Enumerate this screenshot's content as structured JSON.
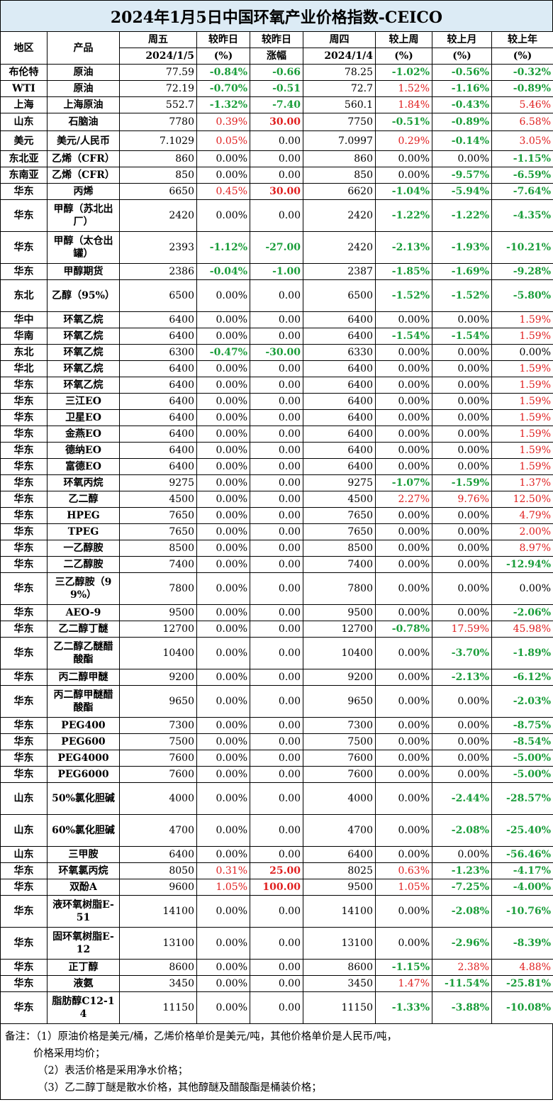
{
  "title": "2024年1月5日中国环氧产业价格指数-CEICO",
  "header": {
    "region": "地区",
    "product": "产品",
    "fri_label": "周五",
    "fri_date": "2024/1/5",
    "vs_prev_day_pct": "较昨日",
    "pct_unit": "(%)",
    "vs_prev_day_chg": "较昨日",
    "chg_unit": "涨幅",
    "thu_label": "周四",
    "thu_date": "2024/1/4",
    "vs_last_week": "较上周",
    "vs_last_month": "较上月",
    "vs_last_year": "较上年"
  },
  "rows": [
    {
      "region": "布伦特",
      "product": "原油",
      "fri": "77.59",
      "dpct": "-0.84%",
      "dchg": "-0.66",
      "thu": "78.25",
      "w": "-1.02%",
      "m": "-0.56%",
      "y": "-0.32%",
      "h": 23
    },
    {
      "region": "WTI",
      "product": "原油",
      "fri": "72.19",
      "dpct": "-0.70%",
      "dchg": "-0.51",
      "thu": "72.7",
      "w": "1.52%",
      "m": "-1.16%",
      "y": "-0.89%",
      "h": 23
    },
    {
      "region": "上海",
      "product": "上海原油",
      "fri": "552.7",
      "dpct": "-1.32%",
      "dchg": "-7.40",
      "thu": "560.1",
      "w": "1.84%",
      "m": "-0.43%",
      "y": "5.46%",
      "h": 23
    },
    {
      "region": "山东",
      "product": "石脑油",
      "fri": "7780",
      "dpct": "0.39%",
      "dchg": "30.00",
      "thu": "7750",
      "w": "-0.51%",
      "m": "-0.89%",
      "y": "6.58%",
      "h": 25
    },
    {
      "region": "美元",
      "product": "美元/人民币",
      "fri": "7.1029",
      "dpct": "0.05%",
      "dchg": "0.00",
      "thu": "7.0997",
      "w": "0.29%",
      "m": "-0.14%",
      "y": "3.05%",
      "h": 28
    },
    {
      "region": "东北亚",
      "product": "乙烯（CFR）",
      "fri": "860",
      "dpct": "0.00%",
      "dchg": "0.00",
      "thu": "860",
      "w": "0.00%",
      "m": "0.00%",
      "y": "-1.15%",
      "h": 23
    },
    {
      "region": "东南亚",
      "product": "乙烯（CFR）",
      "fri": "850",
      "dpct": "0.00%",
      "dchg": "0.00",
      "thu": "850",
      "w": "0.00%",
      "m": "-9.57%",
      "y": "-6.59%",
      "h": 23
    },
    {
      "region": "华东",
      "product": "丙烯",
      "fri": "6650",
      "dpct": "0.45%",
      "dchg": "30.00",
      "thu": "6620",
      "w": "-1.04%",
      "m": "-5.94%",
      "y": "-7.64%",
      "h": 23
    },
    {
      "region": "华东",
      "product": "甲醇（苏北出厂）",
      "fri": "2420",
      "dpct": "0.00%",
      "dchg": "0.00",
      "thu": "2420",
      "w": "-1.22%",
      "m": "-1.22%",
      "y": "-4.35%",
      "h": 45
    },
    {
      "region": "华东",
      "product": "甲醇（太仓出罐）",
      "fri": "2393",
      "dpct": "-1.12%",
      "dchg": "-27.00",
      "thu": "2420",
      "w": "-2.13%",
      "m": "-1.93%",
      "y": "-10.21%",
      "h": 45
    },
    {
      "region": "华东",
      "product": "甲醇期货",
      "fri": "2386",
      "dpct": "-0.04%",
      "dchg": "-1.00",
      "thu": "2387",
      "w": "-1.85%",
      "m": "-1.69%",
      "y": "-9.28%",
      "h": 23
    },
    {
      "region": "东北",
      "product": "乙醇（95%）",
      "fri": "6500",
      "dpct": "0.00%",
      "dchg": "0.00",
      "thu": "6500",
      "w": "-1.52%",
      "m": "-1.52%",
      "y": "-5.80%",
      "h": 45
    },
    {
      "region": "华中",
      "product": "环氧乙烷",
      "fri": "6400",
      "dpct": "0.00%",
      "dchg": "0.00",
      "thu": "6400",
      "w": "0.00%",
      "m": "0.00%",
      "y": "1.59%",
      "h": 23
    },
    {
      "region": "华南",
      "product": "环氧乙烷",
      "fri": "6400",
      "dpct": "0.00%",
      "dchg": "0.00",
      "thu": "6400",
      "w": "-1.54%",
      "m": "-1.54%",
      "y": "1.59%",
      "h": 23
    },
    {
      "region": "东北",
      "product": "环氧乙烷",
      "fri": "6300",
      "dpct": "-0.47%",
      "dchg": "-30.00",
      "thu": "6330",
      "w": "0.00%",
      "m": "0.00%",
      "y": "0.00%",
      "h": 23
    },
    {
      "region": "华北",
      "product": "环氧乙烷",
      "fri": "6400",
      "dpct": "0.00%",
      "dchg": "0.00",
      "thu": "6400",
      "w": "0.00%",
      "m": "0.00%",
      "y": "1.59%",
      "h": 23
    },
    {
      "region": "华东",
      "product": "环氧乙烷",
      "fri": "6400",
      "dpct": "0.00%",
      "dchg": "0.00",
      "thu": "6400",
      "w": "0.00%",
      "m": "0.00%",
      "y": "1.59%",
      "h": 23
    },
    {
      "region": "华东",
      "product": "三江EO",
      "fri": "6400",
      "dpct": "0.00%",
      "dchg": "0.00",
      "thu": "6400",
      "w": "0.00%",
      "m": "0.00%",
      "y": "1.59%",
      "h": 23
    },
    {
      "region": "华东",
      "product": "卫星EO",
      "fri": "6400",
      "dpct": "0.00%",
      "dchg": "0.00",
      "thu": "6400",
      "w": "0.00%",
      "m": "0.00%",
      "y": "1.59%",
      "h": 23
    },
    {
      "region": "华东",
      "product": "金燕EO",
      "fri": "6400",
      "dpct": "0.00%",
      "dchg": "0.00",
      "thu": "6400",
      "w": "0.00%",
      "m": "0.00%",
      "y": "1.59%",
      "h": 23
    },
    {
      "region": "华东",
      "product": "德纳EO",
      "fri": "6400",
      "dpct": "0.00%",
      "dchg": "0.00",
      "thu": "6400",
      "w": "0.00%",
      "m": "0.00%",
      "y": "1.59%",
      "h": 23
    },
    {
      "region": "华东",
      "product": "富德EO",
      "fri": "6400",
      "dpct": "0.00%",
      "dchg": "0.00",
      "thu": "6400",
      "w": "0.00%",
      "m": "0.00%",
      "y": "1.59%",
      "h": 23
    },
    {
      "region": "华东",
      "product": "环氧丙烷",
      "fri": "9275",
      "dpct": "0.00%",
      "dchg": "0.00",
      "thu": "9275",
      "w": "-1.07%",
      "m": "-1.59%",
      "y": "1.37%",
      "h": 23
    },
    {
      "region": "华东",
      "product": "乙二醇",
      "fri": "4500",
      "dpct": "0.00%",
      "dchg": "0.00",
      "thu": "4500",
      "w": "2.27%",
      "m": "9.76%",
      "y": "12.50%",
      "h": 23
    },
    {
      "region": "华东",
      "product": "HPEG",
      "fri": "7650",
      "dpct": "0.00%",
      "dchg": "0.00",
      "thu": "7650",
      "w": "0.00%",
      "m": "0.00%",
      "y": "4.79%",
      "h": 23
    },
    {
      "region": "华东",
      "product": "TPEG",
      "fri": "7650",
      "dpct": "0.00%",
      "dchg": "0.00",
      "thu": "7650",
      "w": "0.00%",
      "m": "0.00%",
      "y": "2.00%",
      "h": 23
    },
    {
      "region": "华东",
      "product": "一乙醇胺",
      "fri": "8500",
      "dpct": "0.00%",
      "dchg": "0.00",
      "thu": "8500",
      "w": "0.00%",
      "m": "0.00%",
      "y": "8.97%",
      "h": 23
    },
    {
      "region": "华东",
      "product": "二乙醇胺",
      "fri": "7400",
      "dpct": "0.00%",
      "dchg": "0.00",
      "thu": "7400",
      "w": "0.00%",
      "m": "0.00%",
      "y": "-12.94%",
      "h": 23
    },
    {
      "region": "华东",
      "product": "三乙醇胺（99%）",
      "fri": "7800",
      "dpct": "0.00%",
      "dchg": "0.00",
      "thu": "7800",
      "w": "0.00%",
      "m": "0.00%",
      "y": "0.00%",
      "h": 45
    },
    {
      "region": "华东",
      "product": "AEO-9",
      "fri": "9500",
      "dpct": "0.00%",
      "dchg": "0.00",
      "thu": "9500",
      "w": "0.00%",
      "m": "0.00%",
      "y": "-2.06%",
      "h": 23
    },
    {
      "region": "华东",
      "product": "乙二醇丁醚",
      "fri": "12700",
      "dpct": "0.00%",
      "dchg": "0.00",
      "thu": "12700",
      "w": "-0.78%",
      "m": "17.59%",
      "y": "45.98%",
      "h": 23
    },
    {
      "region": "华东",
      "product": "乙二醇乙醚醋酸酯",
      "fri": "10400",
      "dpct": "0.00%",
      "dchg": "0.00",
      "thu": "10400",
      "w": "0.00%",
      "m": "-3.70%",
      "y": "-1.89%",
      "h": 45
    },
    {
      "region": "华东",
      "product": "丙二醇甲醚",
      "fri": "9200",
      "dpct": "0.00%",
      "dchg": "0.00",
      "thu": "9200",
      "w": "0.00%",
      "m": "-2.13%",
      "y": "-6.12%",
      "h": 23
    },
    {
      "region": "华东",
      "product": "丙二醇甲醚醋酸酯",
      "fri": "9650",
      "dpct": "0.00%",
      "dchg": "0.00",
      "thu": "9650",
      "w": "0.00%",
      "m": "0.00%",
      "y": "-2.03%",
      "h": 45
    },
    {
      "region": "华东",
      "product": "PEG400",
      "fri": "7300",
      "dpct": "0.00%",
      "dchg": "0.00",
      "thu": "7300",
      "w": "0.00%",
      "m": "0.00%",
      "y": "-8.75%",
      "h": 23
    },
    {
      "region": "华东",
      "product": "PEG600",
      "fri": "7500",
      "dpct": "0.00%",
      "dchg": "0.00",
      "thu": "7500",
      "w": "0.00%",
      "m": "0.00%",
      "y": "-8.54%",
      "h": 23
    },
    {
      "region": "华东",
      "product": "PEG4000",
      "fri": "7600",
      "dpct": "0.00%",
      "dchg": "0.00",
      "thu": "7600",
      "w": "0.00%",
      "m": "0.00%",
      "y": "-5.00%",
      "h": 23
    },
    {
      "region": "华东",
      "product": "PEG6000",
      "fri": "7600",
      "dpct": "0.00%",
      "dchg": "0.00",
      "thu": "7600",
      "w": "0.00%",
      "m": "0.00%",
      "y": "-5.00%",
      "h": 23
    },
    {
      "region": "山东",
      "product": "50%氯化胆碱",
      "fri": "4000",
      "dpct": "0.00%",
      "dchg": "0.00",
      "thu": "4000",
      "w": "0.00%",
      "m": "-2.44%",
      "y": "-28.57%",
      "h": 45
    },
    {
      "region": "山东",
      "product": "60%氯化胆碱",
      "fri": "4700",
      "dpct": "0.00%",
      "dchg": "0.00",
      "thu": "4700",
      "w": "0.00%",
      "m": "-2.08%",
      "y": "-25.40%",
      "h": 45
    },
    {
      "region": "山东",
      "product": "三甲胺",
      "fri": "6400",
      "dpct": "0.00%",
      "dchg": "0.00",
      "thu": "6400",
      "w": "0.00%",
      "m": "0.00%",
      "y": "-56.46%",
      "h": 23
    },
    {
      "region": "华东",
      "product": "环氧氯丙烷",
      "fri": "8050",
      "dpct": "0.31%",
      "dchg": "25.00",
      "thu": "8025",
      "w": "0.63%",
      "m": "-1.23%",
      "y": "-4.17%",
      "h": 23
    },
    {
      "region": "华东",
      "product": "双酚A",
      "fri": "9600",
      "dpct": "1.05%",
      "dchg": "100.00",
      "thu": "9500",
      "w": "1.05%",
      "m": "-7.25%",
      "y": "-4.00%",
      "h": 23
    },
    {
      "region": "华东",
      "product": "液环氧树脂E-51",
      "fri": "14100",
      "dpct": "0.00%",
      "dchg": "0.00",
      "thu": "14100",
      "w": "0.00%",
      "m": "-2.08%",
      "y": "-10.76%",
      "h": 45
    },
    {
      "region": "华东",
      "product": "固环氧树脂E-12",
      "fri": "13100",
      "dpct": "0.00%",
      "dchg": "0.00",
      "thu": "13100",
      "w": "0.00%",
      "m": "-2.96%",
      "y": "-8.39%",
      "h": 45
    },
    {
      "region": "华东",
      "product": "正丁醇",
      "fri": "8600",
      "dpct": "0.00%",
      "dchg": "0.00",
      "thu": "8600",
      "w": "-1.15%",
      "m": "2.38%",
      "y": "4.88%",
      "h": 23
    },
    {
      "region": "华东",
      "product": "液氨",
      "fri": "3450",
      "dpct": "0.00%",
      "dchg": "0.00",
      "thu": "3450",
      "w": "1.47%",
      "m": "-11.54%",
      "y": "-25.81%",
      "h": 23
    },
    {
      "region": "华东",
      "product": "脂肪醇C12-14",
      "fri": "11150",
      "dpct": "0.00%",
      "dchg": "0.00",
      "thu": "11150",
      "w": "-1.33%",
      "m": "-3.88%",
      "y": "-10.08%",
      "h": 45
    }
  ],
  "notes": {
    "line1": "备注：（1）原油价格是美元/桶，乙烯价格单价是美元/吨，其他价格单价是人民币/吨，",
    "line2": "价格采用均价；",
    "line3": "（2）表活价格是采用净水价格；",
    "line4": "（3）乙二醇丁醚是散水价格，其他醇醚及醋酸酯是桶装价格；"
  }
}
